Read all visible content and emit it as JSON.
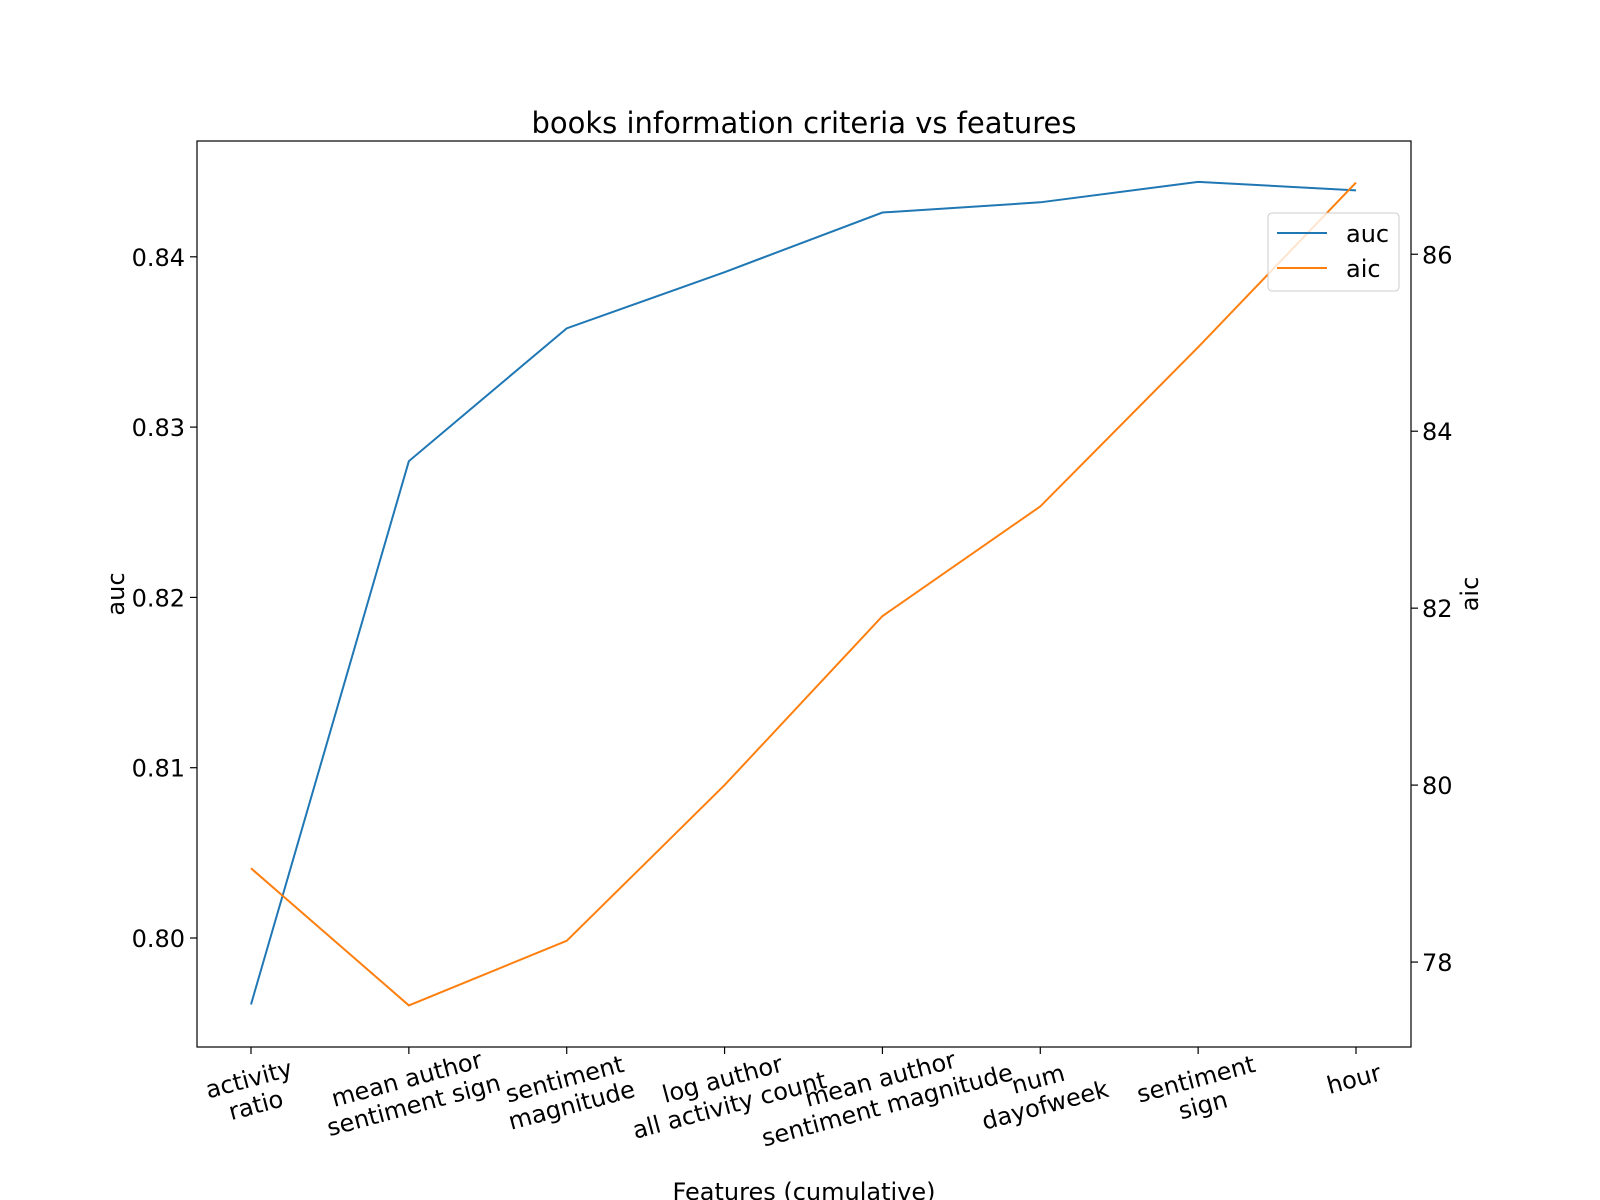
{
  "chart_data": {
    "type": "line",
    "title": "books information criteria vs features",
    "x_label": "Features (cumulative)",
    "y_label": "auc",
    "y2_label": "aic",
    "categories": [
      "activity\nratio",
      "mean author\nsentiment sign",
      "sentiment\nmagnitude",
      "log author\nall activity count",
      "mean author\nsentiment magnitude",
      "num\ndayofweek",
      "sentiment\nsign",
      "hour"
    ],
    "series": [
      {
        "name": "auc",
        "color": "#1f77b4",
        "values": [
          0.7961,
          0.828,
          0.8358,
          0.8391,
          0.8426,
          0.8432,
          0.8444,
          0.8439
        ]
      },
      {
        "name": "aic",
        "color": "#ff7f0e",
        "axis": "y2",
        "values": [
          79.06,
          77.51,
          78.24,
          80.0,
          81.91,
          83.15,
          84.95,
          86.81
        ]
      }
    ],
    "ylim": [
      0.7936,
      0.8468
    ],
    "yticks": [
      {
        "value": 0.8,
        "label": "0.80"
      },
      0.81,
      0.82,
      0.83,
      0.84
    ],
    "y2lim": [
      77.04,
      87.28
    ],
    "y2ticks": [
      78,
      80,
      82,
      84,
      86
    ],
    "legend": "upper right",
    "grid": false
  }
}
